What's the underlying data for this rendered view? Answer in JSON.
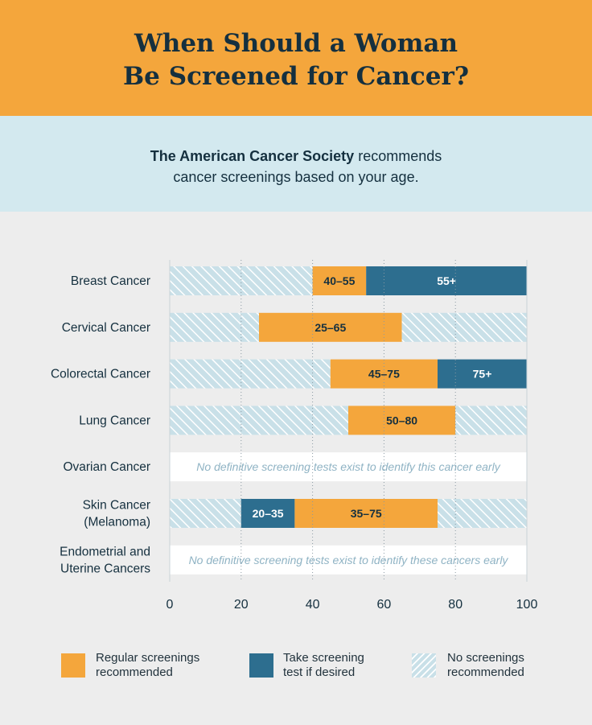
{
  "title": {
    "line1": "When Should a Woman",
    "line2": "Be Screened for Cancer?"
  },
  "intro": {
    "org": "The American Cancer Society",
    "rest1": "recommends",
    "line2": "cancer screenings based on your age."
  },
  "colors": {
    "regular": "#f4a63c",
    "optional": "#2d6e8f",
    "none_bg": "#c9e0e8",
    "none_stripe": "#ffffff",
    "text": "#15303f",
    "note": "#8fb3c4"
  },
  "legend": {
    "regular": "Regular screenings recommended",
    "optional": "Take screening test if desired",
    "none": "No screenings recommended"
  },
  "chart_data": {
    "type": "bar",
    "orientation": "horizontal-stacked",
    "title": "",
    "xlabel": "",
    "ylabel": "",
    "xlim": [
      0,
      100
    ],
    "xticks": [
      0,
      20,
      40,
      60,
      80,
      100
    ],
    "grid": true,
    "legend_position": "bottom",
    "categories": [
      {
        "label": [
          "Breast Cancer"
        ],
        "segments": [
          {
            "kind": "none",
            "start": 0,
            "end": 40
          },
          {
            "kind": "regular",
            "start": 40,
            "end": 55,
            "label": "40–55"
          },
          {
            "kind": "optional",
            "start": 55,
            "end": 100,
            "label": "55+"
          }
        ]
      },
      {
        "label": [
          "Cervical Cancer"
        ],
        "segments": [
          {
            "kind": "none",
            "start": 0,
            "end": 25
          },
          {
            "kind": "regular",
            "start": 25,
            "end": 65,
            "label": "25–65"
          },
          {
            "kind": "none",
            "start": 65,
            "end": 100
          }
        ]
      },
      {
        "label": [
          "Colorectal Cancer"
        ],
        "segments": [
          {
            "kind": "none",
            "start": 0,
            "end": 45
          },
          {
            "kind": "regular",
            "start": 45,
            "end": 75,
            "label": "45–75"
          },
          {
            "kind": "optional",
            "start": 75,
            "end": 100,
            "label": "75+"
          }
        ]
      },
      {
        "label": [
          "Lung Cancer"
        ],
        "segments": [
          {
            "kind": "none",
            "start": 0,
            "end": 50
          },
          {
            "kind": "regular",
            "start": 50,
            "end": 80,
            "label": "50–80"
          },
          {
            "kind": "none",
            "start": 80,
            "end": 100
          }
        ]
      },
      {
        "label": [
          "Ovarian Cancer"
        ],
        "note": "No definitive screening tests exist to identify this cancer early",
        "segments": []
      },
      {
        "label": [
          "Skin Cancer",
          "(Melanoma)"
        ],
        "segments": [
          {
            "kind": "none",
            "start": 0,
            "end": 20
          },
          {
            "kind": "optional",
            "start": 20,
            "end": 35,
            "label": "20–35"
          },
          {
            "kind": "regular",
            "start": 35,
            "end": 75,
            "label": "35–75"
          },
          {
            "kind": "none",
            "start": 75,
            "end": 100
          }
        ]
      },
      {
        "label": [
          "Endometrial and",
          "Uterine Cancers"
        ],
        "note": "No definitive screening tests exist to identify these cancers early",
        "segments": []
      }
    ]
  }
}
